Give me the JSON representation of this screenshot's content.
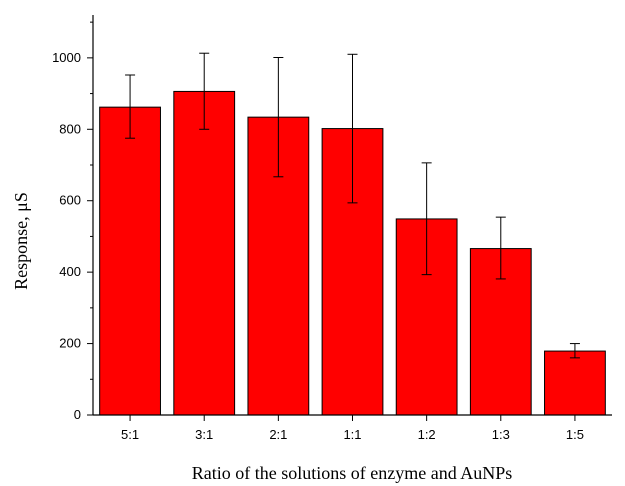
{
  "chart_data": {
    "type": "bar",
    "xlabel": "Ratio of the solutions of enzyme and AuNPs",
    "ylabel": "Response, μS",
    "categories": [
      "5:1",
      "3:1",
      "2:1",
      "1:1",
      "1:2",
      "1:3",
      "1:5"
    ],
    "values": [
      862,
      906,
      834,
      802,
      549,
      466,
      179
    ],
    "error_low": [
      775,
      800,
      667,
      594,
      393,
      381,
      160
    ],
    "error_high": [
      952,
      1013,
      1001,
      1010,
      706,
      554,
      200
    ],
    "ylim": [
      0,
      1120
    ],
    "y_ticks": [
      0,
      200,
      400,
      600,
      800,
      1000
    ],
    "bar_color": "#ff0000",
    "grid": false,
    "legend": "none"
  }
}
